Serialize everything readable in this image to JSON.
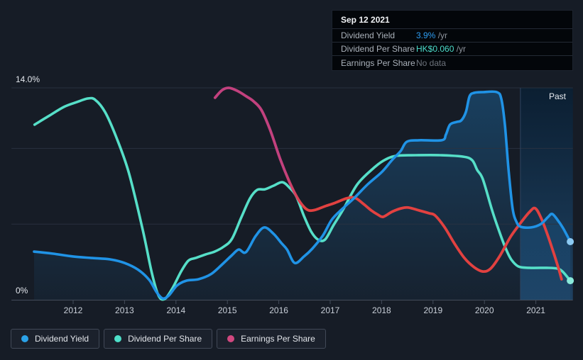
{
  "colors": {
    "background": "#161c26",
    "grid": "#2b3342",
    "axis": "#434c5a",
    "past_region_top": "#0a1f33",
    "past_region_bottom": "#1f4466",
    "past_divider": "#2e4460",
    "yield_blue": "#2093e6",
    "dps_teal": "#56dfc8",
    "eps_pink": "#c2417e",
    "eps_red": "#e24140"
  },
  "tooltip": {
    "date": "Sep 12 2021",
    "rows": [
      {
        "label": "Dividend Yield",
        "value": "3.9%",
        "suffix": " /yr",
        "color": "#2e9df2"
      },
      {
        "label": "Dividend Per Share",
        "value": "HK$0.060",
        "suffix": " /yr",
        "color": "#4cdcc9"
      },
      {
        "label": "Earnings Per Share",
        "value": "No data",
        "suffix": "",
        "color": "#6d737c"
      }
    ]
  },
  "legend": {
    "items": [
      {
        "label": "Dividend Yield",
        "color": "#2ba2e8"
      },
      {
        "label": "Dividend Per Share",
        "color": "#4ee0c9"
      },
      {
        "label": "Earnings Per Share",
        "color": "#d1487f"
      }
    ]
  },
  "chart_data": {
    "type": "line",
    "past_label": "Past",
    "past_start": 2020.7,
    "y_axis": {
      "max_label": "14.0%",
      "min_label": "0%",
      "ylim": [
        0,
        14
      ],
      "gridline_values": [
        14,
        10,
        5
      ],
      "baseline": 0
    },
    "x_axis": {
      "ticks": [
        "2012",
        "2013",
        "2014",
        "2015",
        "2016",
        "2017",
        "2018",
        "2019",
        "2020",
        "2021"
      ],
      "xlim": [
        2010.8,
        2021.72
      ]
    },
    "series": [
      {
        "name": "Dividend Per Share",
        "color": "#56dfc8",
        "dot_color": "#8aeada",
        "width": 3.6,
        "end_dot": true,
        "unit": "pct-axis-units",
        "end_value_label": "HK$0.060",
        "points": [
          [
            2011.25,
            11.57
          ],
          [
            2011.54,
            12.17
          ],
          [
            2011.82,
            12.74
          ],
          [
            2012.07,
            13.06
          ],
          [
            2012.29,
            13.3
          ],
          [
            2012.43,
            13.21
          ],
          [
            2012.62,
            12.41
          ],
          [
            2012.83,
            10.82
          ],
          [
            2013.08,
            8.43
          ],
          [
            2013.35,
            4.68
          ],
          [
            2013.53,
            1.78
          ],
          [
            2013.66,
            0.28
          ],
          [
            2013.78,
            0.05
          ],
          [
            2013.93,
            0.75
          ],
          [
            2014.1,
            1.87
          ],
          [
            2014.24,
            2.58
          ],
          [
            2014.38,
            2.76
          ],
          [
            2014.58,
            3.0
          ],
          [
            2014.75,
            3.18
          ],
          [
            2014.93,
            3.51
          ],
          [
            2015.09,
            4.03
          ],
          [
            2015.27,
            5.43
          ],
          [
            2015.44,
            6.7
          ],
          [
            2015.58,
            7.26
          ],
          [
            2015.73,
            7.3
          ],
          [
            2015.9,
            7.54
          ],
          [
            2016.07,
            7.77
          ],
          [
            2016.21,
            7.4
          ],
          [
            2016.34,
            6.84
          ],
          [
            2016.49,
            5.53
          ],
          [
            2016.63,
            4.5
          ],
          [
            2016.76,
            3.98
          ],
          [
            2016.9,
            3.98
          ],
          [
            2017.07,
            4.96
          ],
          [
            2017.25,
            5.95
          ],
          [
            2017.52,
            7.59
          ],
          [
            2017.8,
            8.57
          ],
          [
            2018.03,
            9.18
          ],
          [
            2018.28,
            9.51
          ],
          [
            2018.66,
            9.55
          ],
          [
            2019.14,
            9.55
          ],
          [
            2019.58,
            9.46
          ],
          [
            2019.76,
            9.23
          ],
          [
            2019.86,
            8.57
          ],
          [
            2019.97,
            7.96
          ],
          [
            2020.15,
            5.9
          ],
          [
            2020.29,
            4.5
          ],
          [
            2020.41,
            3.42
          ],
          [
            2020.52,
            2.67
          ],
          [
            2020.66,
            2.2
          ],
          [
            2020.87,
            2.11
          ],
          [
            2021.21,
            2.11
          ],
          [
            2021.42,
            2.06
          ],
          [
            2021.53,
            1.83
          ],
          [
            2021.67,
            1.26
          ]
        ]
      },
      {
        "name": "Earnings Per Share",
        "color": "#c2417e",
        "color2": "#e24140",
        "gradient": [
          0.2,
          0.26
        ],
        "width": 3.8,
        "unit": "pct-axis-units",
        "points": [
          [
            2014.76,
            13.35
          ],
          [
            2014.9,
            13.86
          ],
          [
            2015.03,
            14.0
          ],
          [
            2015.19,
            13.81
          ],
          [
            2015.37,
            13.44
          ],
          [
            2015.51,
            13.11
          ],
          [
            2015.66,
            12.55
          ],
          [
            2015.83,
            11.24
          ],
          [
            2016.03,
            9.27
          ],
          [
            2016.21,
            7.77
          ],
          [
            2016.36,
            6.74
          ],
          [
            2016.49,
            6.13
          ],
          [
            2016.59,
            5.9
          ],
          [
            2016.72,
            5.95
          ],
          [
            2016.9,
            6.18
          ],
          [
            2017.1,
            6.41
          ],
          [
            2017.32,
            6.7
          ],
          [
            2017.48,
            6.74
          ],
          [
            2017.65,
            6.32
          ],
          [
            2017.8,
            5.9
          ],
          [
            2017.93,
            5.62
          ],
          [
            2018.03,
            5.48
          ],
          [
            2018.2,
            5.81
          ],
          [
            2018.38,
            6.04
          ],
          [
            2018.52,
            6.09
          ],
          [
            2018.73,
            5.9
          ],
          [
            2018.93,
            5.71
          ],
          [
            2019.04,
            5.57
          ],
          [
            2019.22,
            4.82
          ],
          [
            2019.42,
            3.7
          ],
          [
            2019.61,
            2.76
          ],
          [
            2019.8,
            2.15
          ],
          [
            2019.97,
            1.87
          ],
          [
            2020.12,
            2.06
          ],
          [
            2020.3,
            2.9
          ],
          [
            2020.51,
            4.17
          ],
          [
            2020.7,
            5.06
          ],
          [
            2020.88,
            5.81
          ],
          [
            2020.99,
            6.04
          ],
          [
            2021.11,
            5.34
          ],
          [
            2021.24,
            4.17
          ],
          [
            2021.36,
            2.95
          ],
          [
            2021.45,
            1.97
          ],
          [
            2021.5,
            1.36
          ]
        ]
      },
      {
        "name": "Dividend Yield",
        "color": "#2093e6",
        "dot_color": "#8ccaf3",
        "width": 3.6,
        "area": true,
        "end_dot": true,
        "unit": "percent",
        "points": [
          [
            2011.24,
            3.18
          ],
          [
            2011.6,
            3.05
          ],
          [
            2012.0,
            2.86
          ],
          [
            2012.37,
            2.76
          ],
          [
            2012.72,
            2.67
          ],
          [
            2013.0,
            2.43
          ],
          [
            2013.27,
            1.97
          ],
          [
            2013.48,
            1.31
          ],
          [
            2013.62,
            0.52
          ],
          [
            2013.74,
            0.09
          ],
          [
            2013.86,
            0.28
          ],
          [
            2014.02,
            0.94
          ],
          [
            2014.2,
            1.26
          ],
          [
            2014.44,
            1.36
          ],
          [
            2014.68,
            1.69
          ],
          [
            2014.9,
            2.34
          ],
          [
            2015.09,
            2.95
          ],
          [
            2015.22,
            3.32
          ],
          [
            2015.36,
            3.14
          ],
          [
            2015.55,
            4.21
          ],
          [
            2015.72,
            4.78
          ],
          [
            2015.9,
            4.35
          ],
          [
            2016.05,
            3.75
          ],
          [
            2016.16,
            3.32
          ],
          [
            2016.31,
            2.43
          ],
          [
            2016.49,
            2.86
          ],
          [
            2016.65,
            3.37
          ],
          [
            2016.86,
            4.26
          ],
          [
            2017.03,
            5.29
          ],
          [
            2017.23,
            5.99
          ],
          [
            2017.46,
            6.7
          ],
          [
            2017.73,
            7.63
          ],
          [
            2018.0,
            8.43
          ],
          [
            2018.2,
            9.22
          ],
          [
            2018.37,
            9.83
          ],
          [
            2018.49,
            10.44
          ],
          [
            2018.73,
            10.54
          ],
          [
            2019.17,
            10.54
          ],
          [
            2019.25,
            10.91
          ],
          [
            2019.33,
            11.57
          ],
          [
            2019.46,
            11.75
          ],
          [
            2019.55,
            11.85
          ],
          [
            2019.64,
            12.41
          ],
          [
            2019.71,
            13.44
          ],
          [
            2019.8,
            13.67
          ],
          [
            2019.97,
            13.72
          ],
          [
            2020.24,
            13.72
          ],
          [
            2020.33,
            13.25
          ],
          [
            2020.4,
            11.47
          ],
          [
            2020.47,
            8.57
          ],
          [
            2020.55,
            5.99
          ],
          [
            2020.63,
            5.1
          ],
          [
            2020.71,
            4.82
          ],
          [
            2020.91,
            4.78
          ],
          [
            2021.1,
            5.01
          ],
          [
            2021.24,
            5.48
          ],
          [
            2021.32,
            5.67
          ],
          [
            2021.43,
            5.24
          ],
          [
            2021.53,
            4.73
          ],
          [
            2021.67,
            3.84
          ]
        ]
      }
    ]
  }
}
